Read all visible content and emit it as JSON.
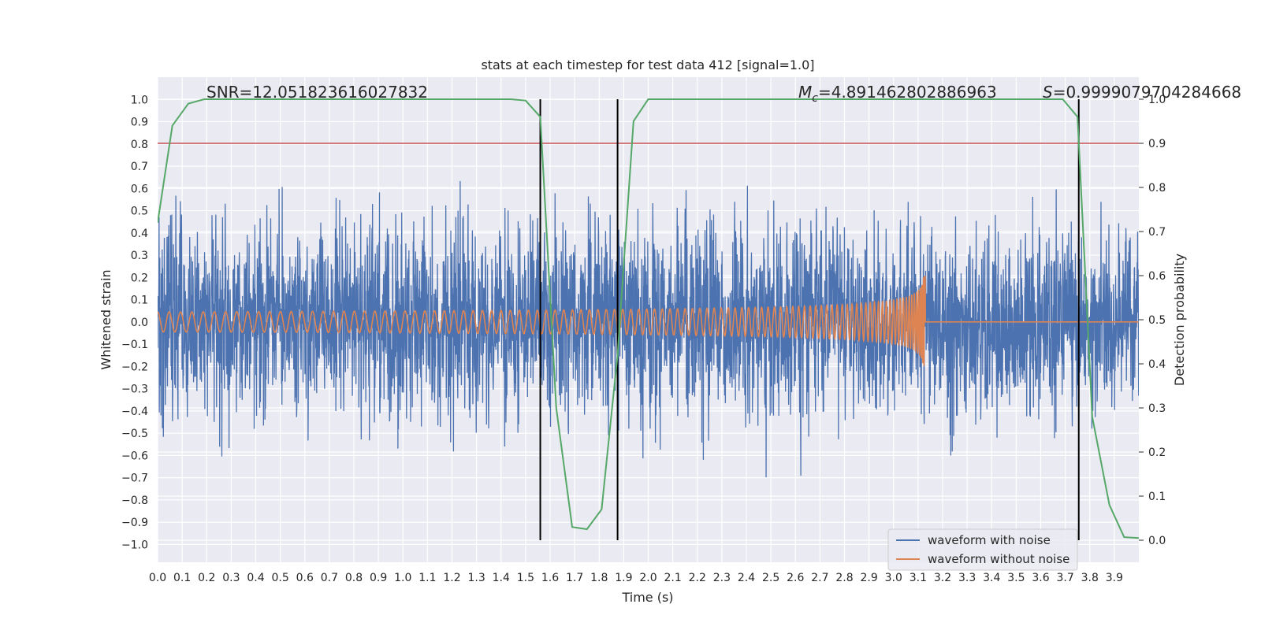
{
  "chart_data": {
    "type": "line",
    "title": "stats at each timestep for test data 412 [signal=1.0]",
    "xlabel": "Time (s)",
    "ylabel": "Whitened strain",
    "y2label": "Detection probability",
    "xlim": [
      0.0,
      4.0
    ],
    "ylim": [
      -1.08,
      1.1
    ],
    "y2lim": [
      -0.05,
      1.05
    ],
    "x_ticks": [
      "0.0",
      "0.1",
      "0.2",
      "0.3",
      "0.4",
      "0.5",
      "0.6",
      "0.7",
      "0.8",
      "0.9",
      "1.0",
      "1.1",
      "1.2",
      "1.3",
      "1.4",
      "1.5",
      "1.6",
      "1.7",
      "1.8",
      "1.9",
      "2.0",
      "2.1",
      "2.2",
      "2.3",
      "2.4",
      "2.5",
      "2.6",
      "2.7",
      "2.8",
      "2.9",
      "3.0",
      "3.1",
      "3.2",
      "3.3",
      "3.4",
      "3.5",
      "3.6",
      "3.7",
      "3.8",
      "3.9"
    ],
    "y_ticks": [
      "1.0",
      "0.9",
      "0.8",
      "0.7",
      "0.6",
      "0.5",
      "0.4",
      "0.3",
      "0.2",
      "0.1",
      "0.0",
      "−0.1",
      "−0.2",
      "−0.3",
      "−0.4",
      "−0.5",
      "−0.6",
      "−0.7",
      "−0.8",
      "−0.9",
      "−1.0"
    ],
    "y2_ticks": [
      "1.0",
      "0.9",
      "0.8",
      "0.7",
      "0.6",
      "0.5",
      "0.4",
      "0.3",
      "0.2",
      "0.1",
      "0.0"
    ],
    "annotations": {
      "snr": "SNR=12.051823616027832",
      "mc_symbol": "M",
      "mc_sub": "c",
      "mc_value": "=4.891462802886963",
      "s_symbol": "S",
      "s_value": "=0.9999079704284668"
    },
    "threshold_probability": 0.9,
    "vertical_lines_time": [
      1.56,
      1.875,
      3.755
    ],
    "series": [
      {
        "name": "waveform with noise",
        "color": "#4c72b0",
        "axis": "left",
        "noise_std": 0.2,
        "duration": 4.0,
        "samples": 4096
      },
      {
        "name": "waveform without noise",
        "color": "#dd8452",
        "axis": "left",
        "merger_time": 3.13,
        "duration": 4.0,
        "samples": 4096
      },
      {
        "name": "detection probability",
        "color": "#55a868",
        "axis": "right",
        "x": [
          0.0,
          0.06,
          0.125,
          0.19,
          0.25,
          0.31,
          0.5,
          1.0,
          1.44,
          1.5,
          1.56,
          1.625,
          1.69,
          1.75,
          1.81,
          1.875,
          1.94,
          2.0,
          2.06,
          2.5,
          3.0,
          3.5,
          3.69,
          3.75,
          3.81,
          3.88,
          3.94,
          4.0
        ],
        "y": [
          0.72,
          0.94,
          0.99,
          1.0,
          1.0,
          1.0,
          1.0,
          1.0,
          1.0,
          0.997,
          0.96,
          0.3,
          0.03,
          0.025,
          0.07,
          0.42,
          0.95,
          1.0,
          1.0,
          1.0,
          1.0,
          1.0,
          1.0,
          0.96,
          0.28,
          0.08,
          0.007,
          0.005
        ]
      }
    ],
    "legend": {
      "position": "bottom-right",
      "entries": [
        "waveform with noise",
        "waveform without noise"
      ]
    },
    "colors": {
      "plot_bg": "#eaeaf2",
      "grid": "#ffffff",
      "threshold": "#c44e52",
      "vline": "#000000"
    }
  }
}
